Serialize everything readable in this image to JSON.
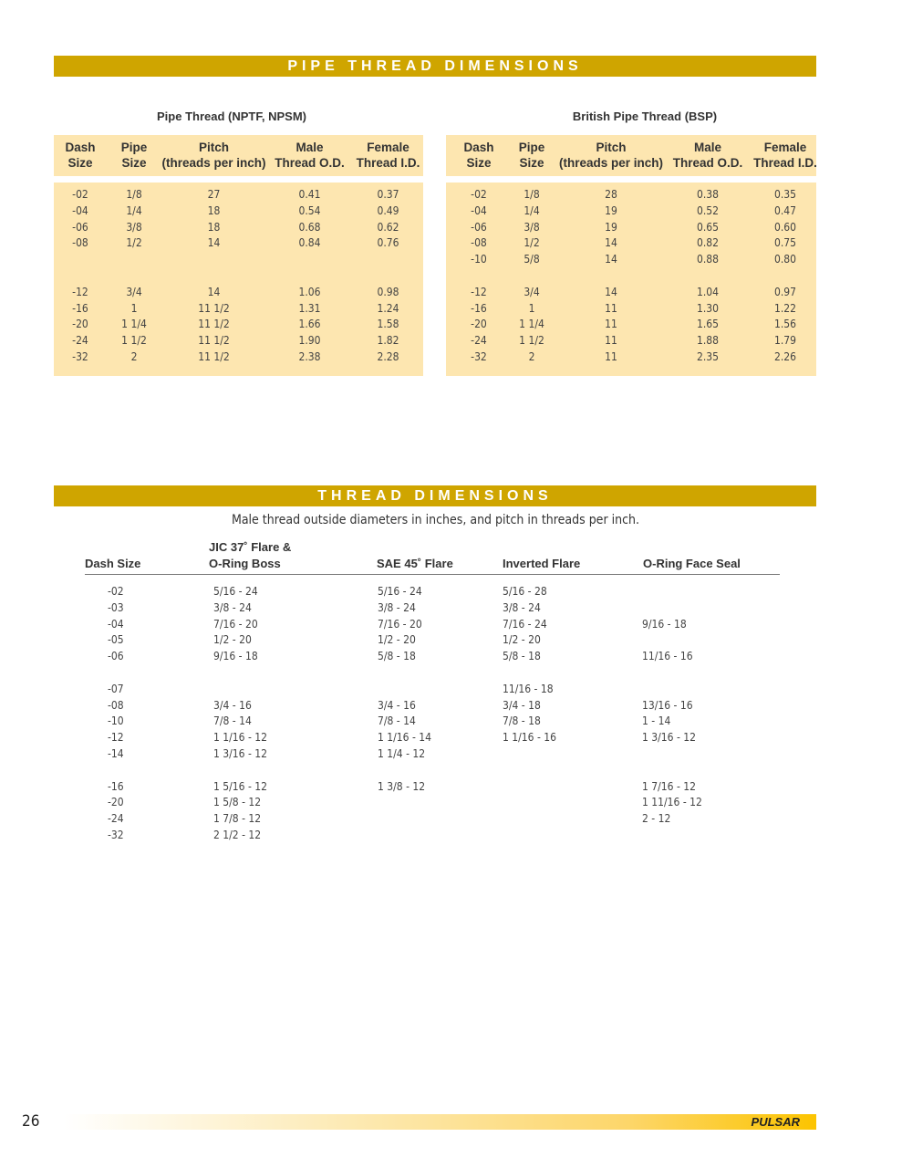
{
  "pipe_banner": "PIPE THREAD DIMENSIONS",
  "npt": {
    "title": "Pipe Thread (NPTF, NPSM)",
    "headers": [
      [
        "Dash",
        "Size"
      ],
      [
        "Pipe",
        "Size"
      ],
      [
        "Pitch",
        "(threads per inch)"
      ],
      [
        "Male",
        "Thread O.D."
      ],
      [
        "Female",
        "Thread I.D."
      ]
    ],
    "rows": [
      [
        "-02",
        "1/8",
        "27",
        "0.41",
        "0.37"
      ],
      [
        "-04",
        "1/4",
        "18",
        "0.54",
        "0.49"
      ],
      [
        "-06",
        "3/8",
        "18",
        "0.68",
        "0.62"
      ],
      [
        "-08",
        "1/2",
        "14",
        "0.84",
        "0.76"
      ],
      [
        "",
        "",
        "",
        "",
        ""
      ],
      null,
      [
        "-12",
        "3/4",
        "14",
        "1.06",
        "0.98"
      ],
      [
        "-16",
        "1",
        "11 1/2",
        "1.31",
        "1.24"
      ],
      [
        "-20",
        "1 1/4",
        "11 1/2",
        "1.66",
        "1.58"
      ],
      [
        "-24",
        "1 1/2",
        "11 1/2",
        "1.90",
        "1.82"
      ],
      [
        "-32",
        "2",
        "11 1/2",
        "2.38",
        "2.28"
      ]
    ]
  },
  "bsp": {
    "title": "British Pipe Thread (BSP)",
    "headers": [
      [
        "Dash",
        "Size"
      ],
      [
        "Pipe",
        "Size"
      ],
      [
        "Pitch",
        "(threads per inch)"
      ],
      [
        "Male",
        "Thread O.D."
      ],
      [
        "Female",
        "Thread I.D."
      ]
    ],
    "rows": [
      [
        "-02",
        "1/8",
        "28",
        "0.38",
        "0.35"
      ],
      [
        "-04",
        "1/4",
        "19",
        "0.52",
        "0.47"
      ],
      [
        "-06",
        "3/8",
        "19",
        "0.65",
        "0.60"
      ],
      [
        "-08",
        "1/2",
        "14",
        "0.82",
        "0.75"
      ],
      [
        "-10",
        "5/8",
        "14",
        "0.88",
        "0.80"
      ],
      null,
      [
        "-12",
        "3/4",
        "14",
        "1.04",
        "0.97"
      ],
      [
        "-16",
        "1",
        "11",
        "1.30",
        "1.22"
      ],
      [
        "-20",
        "1 1/4",
        "11",
        "1.65",
        "1.56"
      ],
      [
        "-24",
        "1 1/2",
        "11",
        "1.88",
        "1.79"
      ],
      [
        "-32",
        "2",
        "11",
        "2.35",
        "2.26"
      ]
    ]
  },
  "thread_banner": "THREAD DIMENSIONS",
  "thread": {
    "subtitle": "Male thread outside diameters in inches, and pitch in threads per inch.",
    "headers": [
      "Dash Size",
      "JIC 37˚ Flare &\nO-Ring Boss",
      "SAE 45˚ Flare",
      "Inverted Flare",
      "O-Ring Face Seal"
    ],
    "rows": [
      [
        "-02",
        "5/16 - 24",
        "5/16 - 24",
        "5/16 - 28",
        ""
      ],
      [
        "-03",
        "3/8 - 24",
        "3/8 - 24",
        "3/8 - 24",
        ""
      ],
      [
        "-04",
        "7/16 - 20",
        "7/16 - 20",
        "7/16 - 24",
        "9/16 - 18"
      ],
      [
        "-05",
        "1/2 - 20",
        "1/2 - 20",
        "1/2 - 20",
        ""
      ],
      [
        "-06",
        "9/16 - 18",
        "5/8 - 18",
        "5/8 - 18",
        "11/16 - 16"
      ],
      null,
      [
        "-07",
        "",
        "",
        "11/16 - 18",
        ""
      ],
      [
        "-08",
        "3/4 - 16",
        "3/4 - 16",
        "3/4 - 18",
        "13/16 - 16"
      ],
      [
        "-10",
        "7/8 - 14",
        "7/8 - 14",
        "7/8 - 18",
        "1 - 14"
      ],
      [
        "-12",
        "1 1/16 - 12",
        "1 1/16 - 14",
        "1 1/16 - 16",
        "1 3/16 - 12"
      ],
      [
        "-14",
        "1 3/16 - 12",
        "1 1/4 - 12",
        "",
        ""
      ],
      null,
      [
        "-16",
        "1 5/16 - 12",
        "1 3/8 - 12",
        "",
        "1 7/16 - 12"
      ],
      [
        "-20",
        "1 5/8 - 12",
        "",
        "",
        "1 11/16 - 12"
      ],
      [
        "-24",
        "1 7/8 - 12",
        "",
        "",
        "2 - 12"
      ],
      [
        "-32",
        "2 1/2 - 12",
        "",
        "",
        ""
      ]
    ]
  },
  "footer": {
    "page": "26",
    "logo": "PULSAR",
    "bar_color": "#fcc400"
  },
  "colors": {
    "banner": "#cfa500",
    "table_fill": "#fde6b0"
  }
}
